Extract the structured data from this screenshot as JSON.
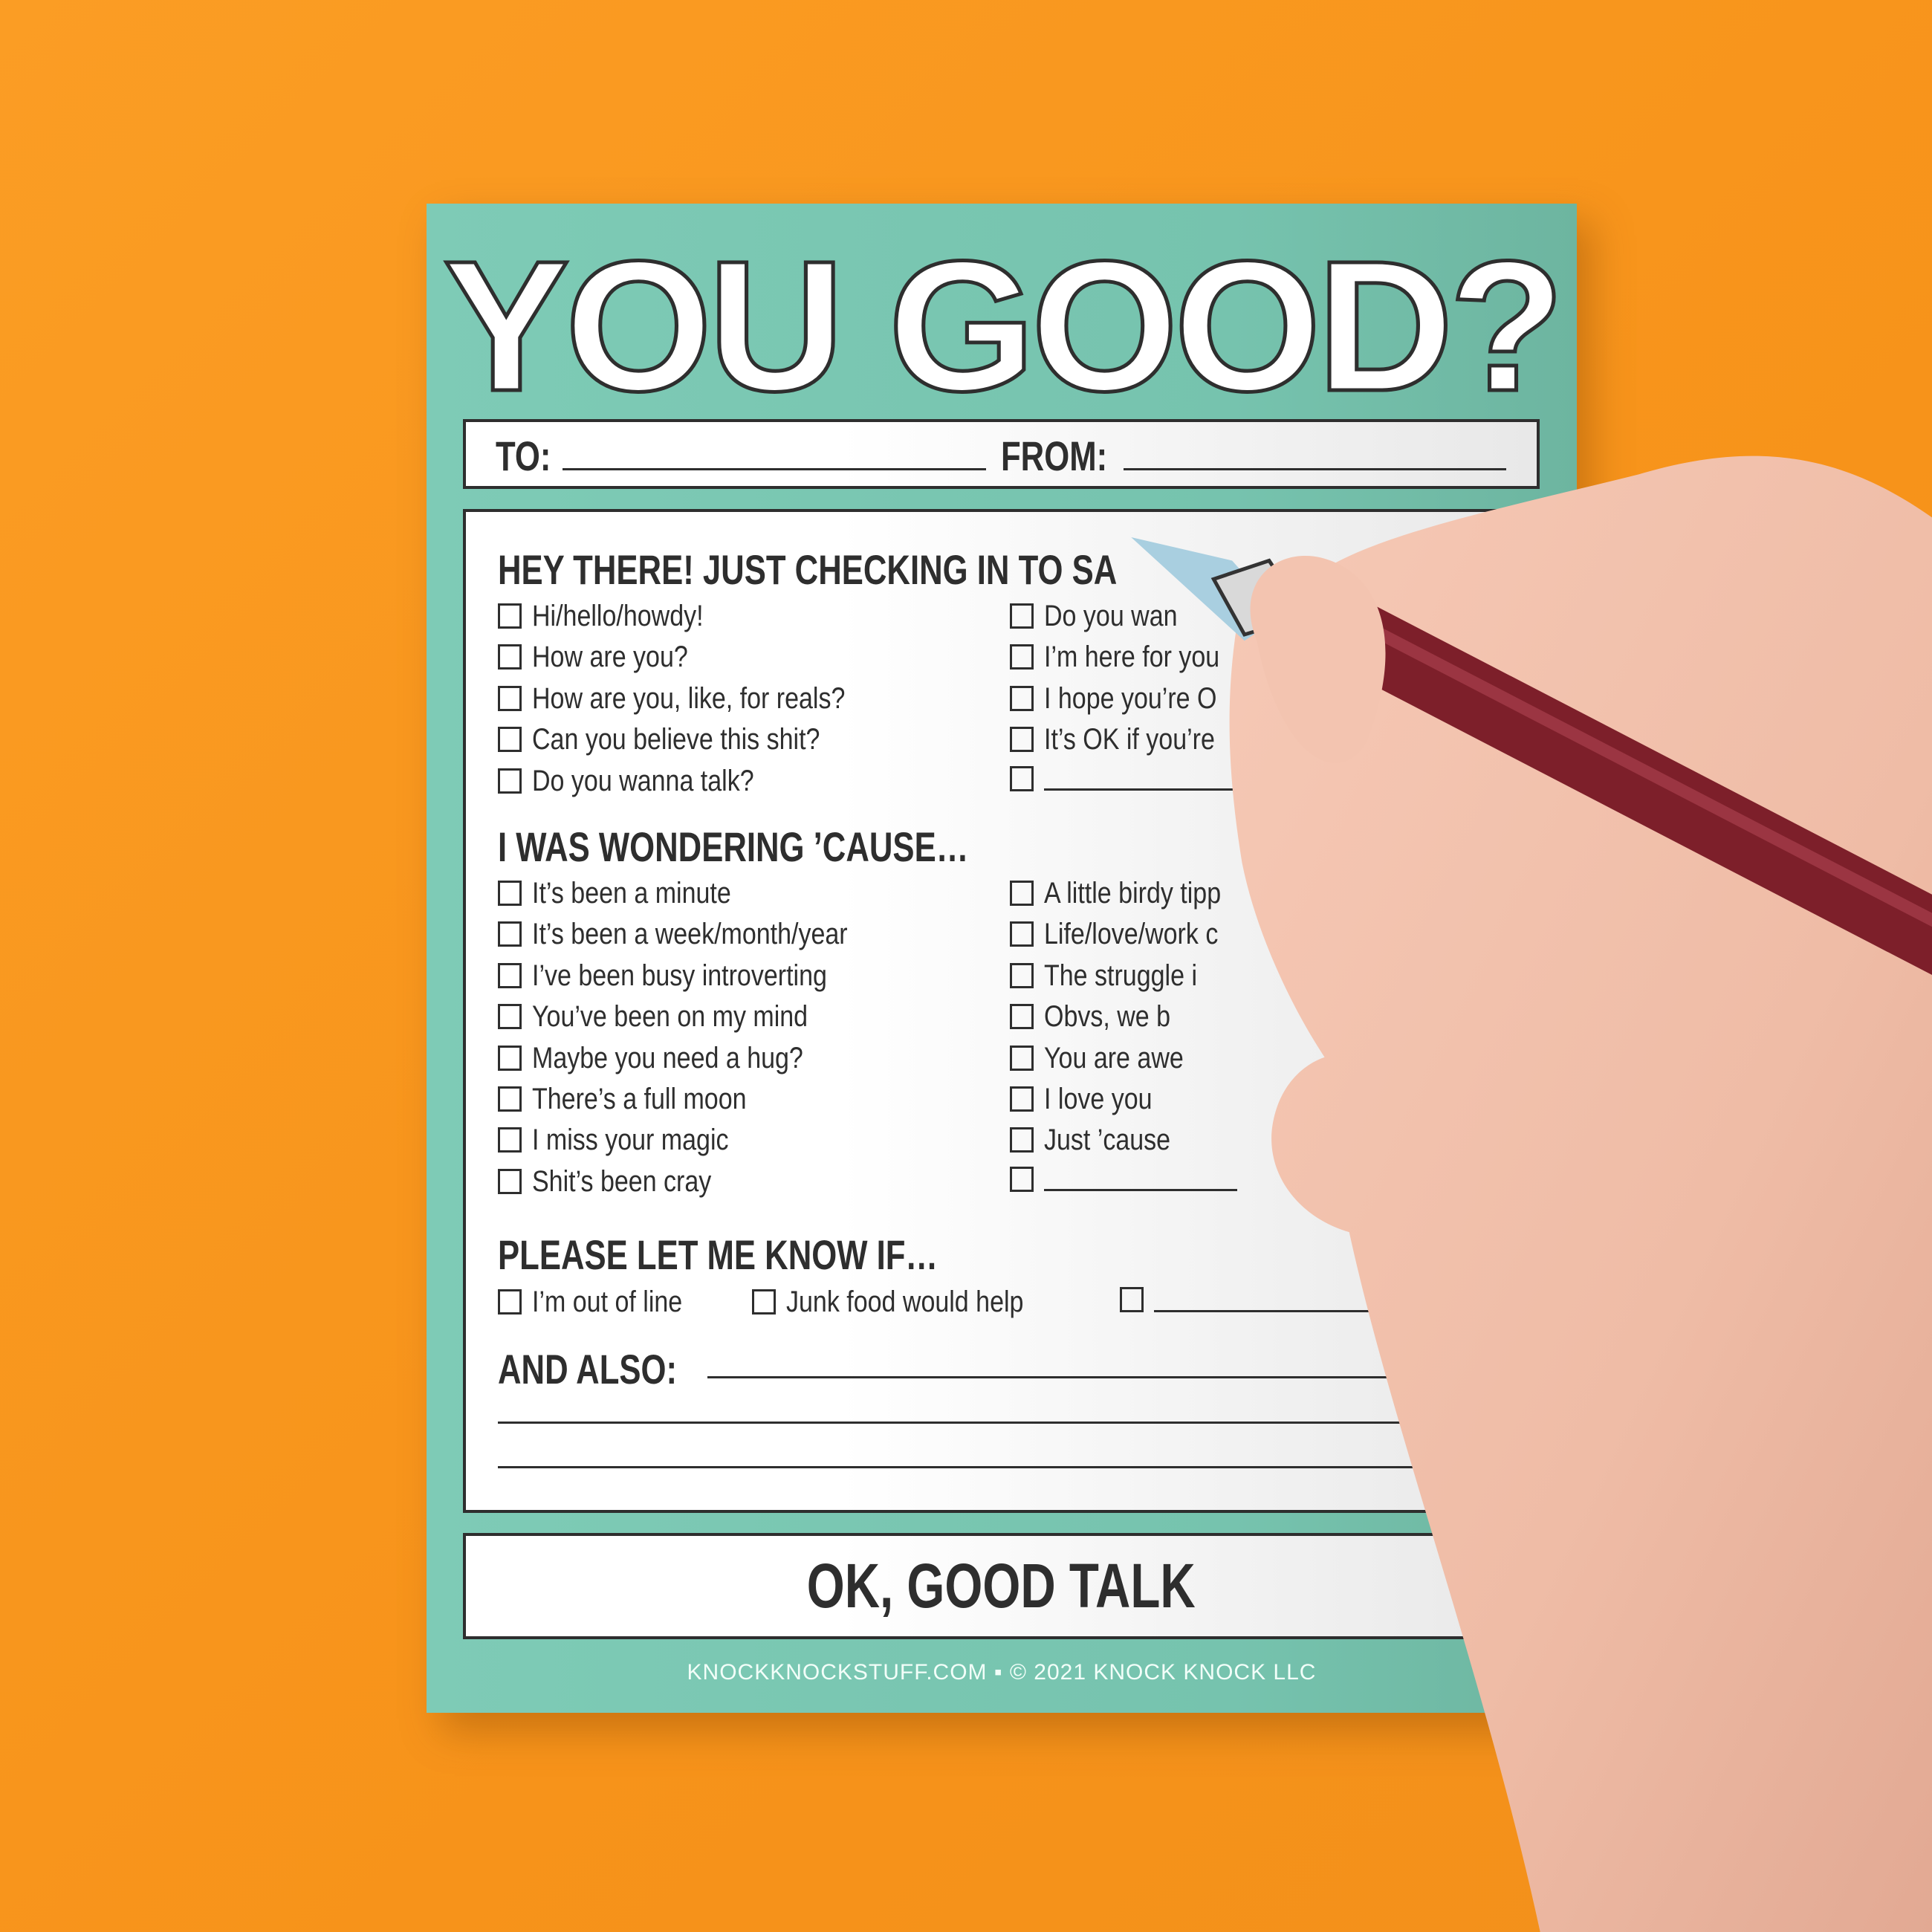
{
  "pad": {
    "title": "YOU GOOD?",
    "to_label": "TO:",
    "from_label": "FROM:",
    "section1": {
      "heading": "HEY THERE! JUST CHECKING IN TO SA",
      "left": [
        "Hi/hello/howdy!",
        "How are you?",
        "How are you, like, for reals?",
        "Can you believe this shit?",
        "Do you wanna talk?"
      ],
      "right": [
        "Do you wan",
        "I’m here for you",
        "I hope you’re O",
        "It’s OK if you’re",
        ""
      ]
    },
    "section2": {
      "heading": "I WAS WONDERING ’CAUSE…",
      "left": [
        "It’s been a minute",
        "It’s been a week/month/year",
        "I’ve been busy introverting",
        "You’ve been on my mind",
        "Maybe you need a hug?",
        "There’s a full moon",
        "I miss your magic",
        "Shit’s been cray"
      ],
      "right": [
        "A little birdy tipp",
        "Life/love/work c",
        "The struggle i",
        "Obvs, we b",
        "You are awe",
        "I love you",
        "Just ’cause",
        ""
      ]
    },
    "section3": {
      "heading": "PLEASE LET ME KNOW IF…",
      "items": [
        "I’m out of line",
        "Junk food would help",
        ""
      ]
    },
    "also_label": "AND ALSO:",
    "closing": "OK, GOOD TALK",
    "footer": "KNOCKKNOCKSTUFF.COM ▪ © 2021 KNOCK KNOCK LLC"
  },
  "colors": {
    "background": "#f7931a",
    "pad": "#7ecbb6",
    "ink": "#2e2e2e",
    "pen": "#8a2430"
  }
}
